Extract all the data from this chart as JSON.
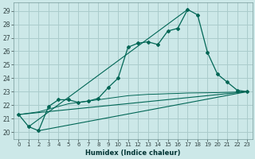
{
  "xlabel": "Humidex (Indice chaleur)",
  "background_color": "#cce8e8",
  "grid_color": "#aacccc",
  "line_color": "#006655",
  "xlim": [
    -0.5,
    23.5
  ],
  "ylim": [
    19.5,
    29.6
  ],
  "yticks": [
    20,
    21,
    22,
    23,
    24,
    25,
    26,
    27,
    28,
    29
  ],
  "xticks": [
    0,
    1,
    2,
    3,
    4,
    5,
    6,
    7,
    8,
    9,
    10,
    11,
    12,
    13,
    14,
    15,
    16,
    17,
    18,
    19,
    20,
    21,
    22,
    23
  ],
  "main_x": [
    0,
    1,
    2,
    3,
    4,
    5,
    6,
    7,
    8,
    9,
    10,
    11,
    12,
    13,
    14,
    15,
    16,
    17,
    18,
    19,
    20,
    21,
    22,
    23
  ],
  "main_y": [
    21.3,
    20.4,
    20.1,
    21.9,
    22.4,
    22.4,
    22.2,
    22.3,
    22.5,
    23.3,
    24.0,
    26.3,
    26.6,
    26.7,
    26.5,
    27.5,
    27.7,
    29.1,
    28.7,
    25.9,
    24.3,
    23.7,
    23.1,
    23.0
  ],
  "trend1_x": [
    0,
    23
  ],
  "trend1_y": [
    21.3,
    23.0
  ],
  "trend2_x": [
    2,
    23
  ],
  "trend2_y": [
    20.1,
    23.0
  ],
  "trend3_x": [
    1,
    17
  ],
  "trend3_y": [
    20.4,
    29.1
  ],
  "smooth_x": [
    0,
    1,
    2,
    3,
    4,
    5,
    6,
    7,
    8,
    9,
    10,
    11,
    12,
    13,
    14,
    15,
    16,
    17,
    18,
    19,
    20,
    21,
    22,
    23
  ],
  "smooth_y": [
    21.3,
    21.4,
    21.5,
    21.7,
    21.9,
    22.1,
    22.2,
    22.3,
    22.4,
    22.5,
    22.6,
    22.7,
    22.75,
    22.8,
    22.82,
    22.85,
    22.87,
    22.9,
    22.91,
    22.92,
    22.93,
    22.95,
    22.97,
    23.0
  ]
}
